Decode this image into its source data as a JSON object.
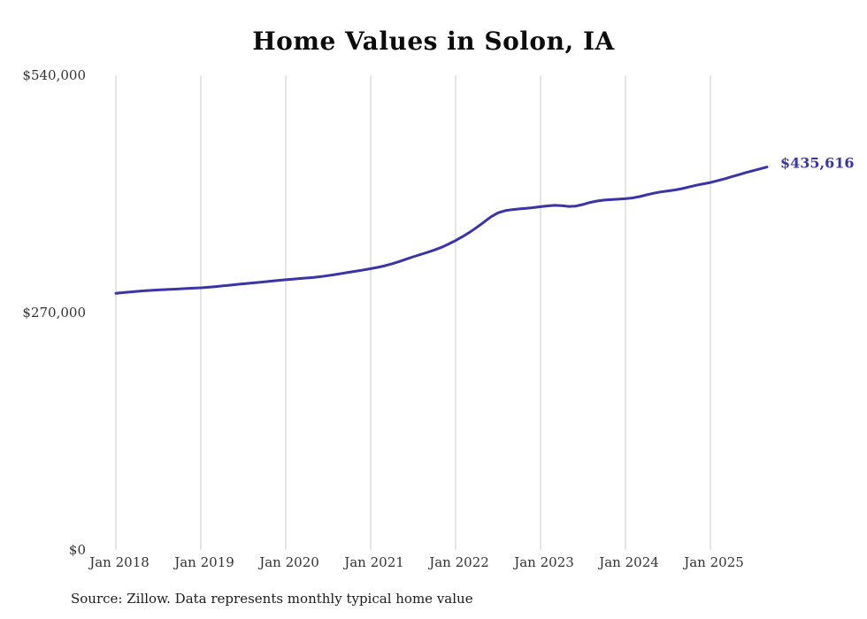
{
  "source_note": "Source: Zillow. Data represents monthly typical home value",
  "colors": {
    "line": "#3935a8",
    "grid": "#cccccc",
    "axis_text": "#333333",
    "end_label": "#3935a8"
  },
  "chart_data": {
    "type": "line",
    "title": "Home Values in Solon, IA",
    "xlabel": "",
    "ylabel": "",
    "ylim": [
      0,
      540000
    ],
    "grid": "vertical-only",
    "legend_position": "none",
    "end_label": "$435,616",
    "end_value": 435616,
    "x_start_month": "Jan 2018",
    "x_end_month": "Sep 2025",
    "x_tick_labels": [
      "Jan 2018",
      "Jan 2019",
      "Jan 2020",
      "Jan 2021",
      "Jan 2022",
      "Jan 2023",
      "Jan 2024",
      "Jan 2025"
    ],
    "y_ticks": [
      {
        "value": 0,
        "label": "$0"
      },
      {
        "value": 270000,
        "label": "$270,000"
      },
      {
        "value": 540000,
        "label": "$540,000"
      }
    ],
    "series": [
      {
        "name": "Typical home value (monthly)",
        "values": [
          292000,
          292800,
          293500,
          294200,
          294800,
          295300,
          295800,
          296200,
          296600,
          297000,
          297400,
          297800,
          298200,
          298800,
          299500,
          300300,
          301100,
          301900,
          302700,
          303500,
          304300,
          305100,
          305900,
          306700,
          307400,
          308100,
          308800,
          309400,
          310100,
          311000,
          312100,
          313300,
          314600,
          315900,
          317200,
          318600,
          320000,
          321500,
          323300,
          325500,
          328000,
          330800,
          333500,
          336000,
          338500,
          341200,
          344300,
          348000,
          352000,
          356500,
          361500,
          367000,
          373000,
          379000,
          383500,
          386000,
          387200,
          388000,
          388700,
          389500,
          390500,
          391400,
          392000,
          391600,
          390800,
          391200,
          393000,
          395300,
          396900,
          398000,
          398600,
          399100,
          399600,
          400500,
          402000,
          404000,
          405800,
          407300,
          408400,
          409500,
          411000,
          413000,
          414900,
          416500,
          418000,
          420000,
          422200,
          424500,
          426900,
          429300,
          431400,
          433500,
          435616
        ]
      }
    ]
  }
}
